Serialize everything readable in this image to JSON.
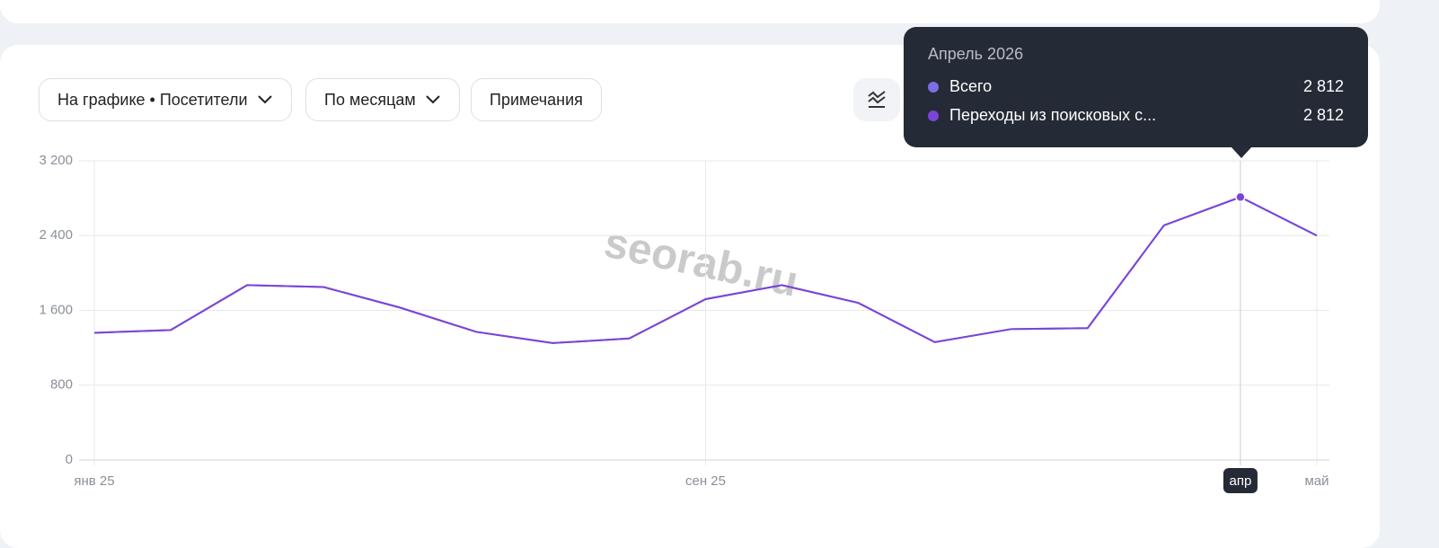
{
  "controls": {
    "metric": "На графике • Посетители",
    "period": "По месяцам",
    "notes": "Примечания"
  },
  "watermark": "seorab.ru",
  "chart_data": {
    "type": "line",
    "categories": [
      "янв 25",
      null,
      null,
      null,
      null,
      null,
      null,
      null,
      "сен 25",
      null,
      null,
      null,
      null,
      null,
      null,
      "апр",
      "май"
    ],
    "tooltip_title": "Апрель 2026",
    "series": [
      {
        "name": "Всего",
        "color": "#7b6fe6",
        "values": [
          1360,
          1390,
          1870,
          1850,
          1630,
          1370,
          1250,
          1300,
          1720,
          1870,
          1680,
          1260,
          1400,
          1410,
          2510,
          2812,
          2400
        ],
        "value_labels": [
          null,
          null,
          null,
          null,
          null,
          null,
          null,
          null,
          null,
          null,
          null,
          null,
          null,
          null,
          null,
          "2 812",
          null
        ]
      },
      {
        "name": "Переходы из поисковых с...",
        "color": "#7a45d6",
        "values": [
          1360,
          1390,
          1870,
          1850,
          1630,
          1370,
          1250,
          1300,
          1720,
          1870,
          1680,
          1260,
          1400,
          1410,
          2510,
          2812,
          2400
        ],
        "value_labels": [
          null,
          null,
          null,
          null,
          null,
          null,
          null,
          null,
          null,
          null,
          null,
          null,
          null,
          null,
          null,
          "2 812",
          null
        ]
      }
    ],
    "ylim": [
      0,
      3200
    ],
    "yticks": [
      0,
      800,
      {
        "value": 1600,
        "label": "1 600"
      },
      {
        "value": 2400,
        "label": "2 400"
      },
      {
        "value": 3200,
        "label": "3 200"
      }
    ],
    "grid": true
  }
}
